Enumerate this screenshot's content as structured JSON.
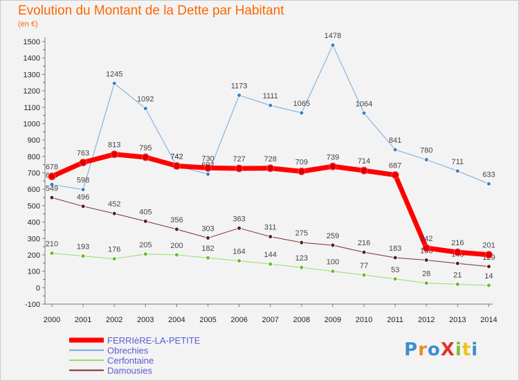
{
  "title": "Evolution du Montant de la Dette par Habitant",
  "unit": "(en €)",
  "logo": {
    "text": "ProXiti",
    "colors": [
      "#3b8fd0",
      "#f08a24",
      "#3b8fd0",
      "#e2342a",
      "#7fbf3a",
      "#f0c020",
      "#3b8fd0"
    ]
  },
  "chart_data": {
    "type": "line",
    "categories": [
      "2000",
      "2001",
      "2002",
      "2003",
      "2004",
      "2005",
      "2006",
      "2007",
      "2008",
      "2009",
      "2010",
      "2011",
      "2012",
      "2013",
      "2014"
    ],
    "ylim": [
      -100,
      1500
    ],
    "yticks": [
      "-100",
      "0",
      "100",
      "200",
      "300",
      "400",
      "500",
      "600",
      "700",
      "800",
      "900",
      "1000",
      "1100",
      "1200",
      "1300",
      "1400",
      "1500"
    ],
    "grid": false,
    "legend_position": "bottom-left",
    "series": [
      {
        "name": "Obrechies",
        "color": "#6fa8dc",
        "marker": "#3b7fc4",
        "width": 1,
        "values": [
          629,
          598,
          1245,
          1092,
          742,
          692,
          1173,
          1111,
          1065,
          1478,
          1064,
          841,
          780,
          711,
          633
        ],
        "labels": [
          "629",
          "598",
          "1245",
          "1092",
          "742",
          "692",
          "1173",
          "1111",
          "1065",
          "1478",
          "1064",
          "841",
          "780",
          "711",
          "633"
        ]
      },
      {
        "name": "Damousies",
        "color": "#7a2d2d",
        "marker": "#5a1f1f",
        "width": 1,
        "values": [
          549,
          496,
          452,
          405,
          356,
          303,
          363,
          311,
          275,
          259,
          216,
          183,
          168,
          148,
          129
        ],
        "labels": [
          "549",
          "496",
          "452",
          "405",
          "356",
          "303",
          "363",
          "311",
          "275",
          "259",
          "216",
          "183",
          "168",
          "148",
          "129"
        ]
      },
      {
        "name": "Cerfontaine",
        "color": "#99dd66",
        "marker": "#66bb33",
        "width": 1,
        "values": [
          210,
          193,
          176,
          205,
          200,
          182,
          164,
          144,
          123,
          100,
          77,
          53,
          28,
          21,
          14
        ],
        "labels": [
          "210",
          "193",
          "176",
          "205",
          "200",
          "182",
          "164",
          "144",
          "123",
          "100",
          "77",
          "53",
          "28",
          "21",
          "14"
        ]
      },
      {
        "name": "FERRIèRE-LA-PETITE",
        "color": "#ff0000",
        "marker": "#dd0000",
        "width": 7,
        "values": [
          678,
          763,
          813,
          795,
          742,
          730,
          727,
          728,
          709,
          739,
          714,
          687,
          242,
          216,
          201
        ],
        "labels": [
          "678",
          "763",
          "813",
          "795",
          "742",
          "730",
          "727",
          "728",
          "709",
          "739",
          "714",
          "687",
          "242",
          "216",
          "201"
        ]
      }
    ],
    "legend": [
      {
        "name": "FERRIèRE-LA-PETITE",
        "color": "#ff0000",
        "width": 7,
        "text_color": "#5b5bd6"
      },
      {
        "name": "Obrechies",
        "color": "#6fa8dc",
        "width": 2,
        "text_color": "#5b5bd6"
      },
      {
        "name": "Cerfontaine",
        "color": "#99dd66",
        "width": 2,
        "text_color": "#5b5bd6"
      },
      {
        "name": "Damousies",
        "color": "#7a2d2d",
        "width": 2,
        "text_color": "#5b5bd6"
      }
    ]
  }
}
